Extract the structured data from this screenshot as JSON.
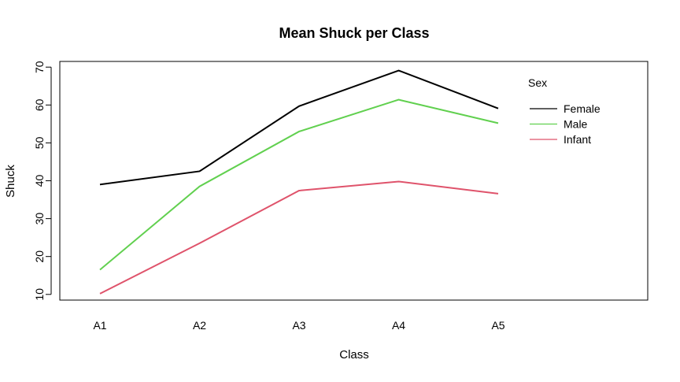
{
  "chart_data": {
    "type": "line",
    "title": "Mean Shuck per Class",
    "xlabel": "Class",
    "ylabel": "Shuck",
    "categories": [
      "A1",
      "A2",
      "A3",
      "A4",
      "A5"
    ],
    "ylim": [
      8.5,
      71.5
    ],
    "y_ticks": [
      10,
      20,
      30,
      40,
      50,
      60,
      70
    ],
    "grid": false,
    "legend": {
      "title": "Sex",
      "placement": "top-right"
    },
    "series": [
      {
        "name": "Female",
        "color": "#000000",
        "values": [
          39.0,
          42.5,
          59.7,
          69.1,
          59.1
        ]
      },
      {
        "name": "Male",
        "color": "#61D04F",
        "values": [
          16.5,
          38.5,
          53.0,
          61.4,
          55.2
        ]
      },
      {
        "name": "Infant",
        "color": "#DF536B",
        "values": [
          10.2,
          23.5,
          37.4,
          39.8,
          36.6
        ]
      }
    ]
  }
}
